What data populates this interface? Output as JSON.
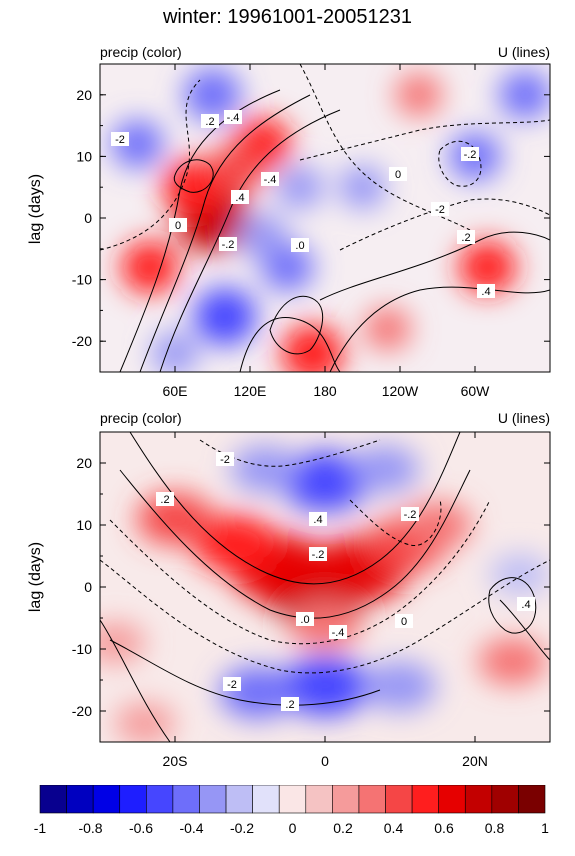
{
  "title": "winter: 19961001-20051231",
  "chart_data": [
    {
      "type": "heatmap",
      "left_label": "precip (color)",
      "right_label": "U (lines)",
      "ylabel": "lag (days)",
      "xlabel": "",
      "x_ticks": [
        "60E",
        "120E",
        "180",
        "120W",
        "60W"
      ],
      "x_tick_values": [
        60,
        120,
        180,
        240,
        300
      ],
      "xlim": [
        0,
        360
      ],
      "y_ticks": [
        "20",
        "10",
        "0",
        "-10",
        "-20"
      ],
      "y_tick_values": [
        20,
        10,
        0,
        -10,
        -20
      ],
      "ylim": [
        -25,
        25
      ],
      "contour_labels": [
        "-2",
        ".2",
        ".4",
        "0",
        "-.2",
        "-.4",
        ".0"
      ],
      "features": [
        {
          "x": 90,
          "y": 0,
          "value": 0.8
        },
        {
          "x": 75,
          "y": 5,
          "value": 0.6
        },
        {
          "x": 130,
          "y": 12,
          "value": 0.5
        },
        {
          "x": 110,
          "y": 8,
          "value": 0.45
        },
        {
          "x": 40,
          "y": -8,
          "value": 0.5
        },
        {
          "x": 170,
          "y": -22,
          "value": 0.6
        },
        {
          "x": 310,
          "y": -8,
          "value": 0.5
        },
        {
          "x": 230,
          "y": -18,
          "value": 0.3
        },
        {
          "x": 255,
          "y": 20,
          "value": 0.3
        },
        {
          "x": 90,
          "y": 20,
          "value": -0.5
        },
        {
          "x": 30,
          "y": 12,
          "value": -0.4
        },
        {
          "x": 100,
          "y": -16,
          "value": -0.6
        },
        {
          "x": 150,
          "y": -8,
          "value": -0.4
        },
        {
          "x": 130,
          "y": -3,
          "value": -0.35
        },
        {
          "x": 160,
          "y": 5,
          "value": -0.3
        },
        {
          "x": 300,
          "y": 10,
          "value": -0.4
        },
        {
          "x": 340,
          "y": 20,
          "value": -0.4
        },
        {
          "x": 210,
          "y": 5,
          "value": -0.3
        },
        {
          "x": 60,
          "y": -22,
          "value": -0.3
        }
      ]
    },
    {
      "type": "heatmap",
      "left_label": "precip (color)",
      "right_label": "U (lines)",
      "ylabel": "lag (days)",
      "xlabel": "",
      "x_ticks": [
        "20S",
        "0",
        "20N"
      ],
      "x_tick_values": [
        -20,
        0,
        20
      ],
      "xlim": [
        -30,
        30
      ],
      "y_ticks": [
        "20",
        "10",
        "0",
        "-10",
        "-20"
      ],
      "y_tick_values": [
        20,
        10,
        0,
        -10,
        -20
      ],
      "ylim": [
        -25,
        25
      ],
      "contour_labels": [
        "-2",
        ".2",
        ".4",
        "-.2",
        ".0",
        "-.4",
        "0"
      ],
      "features": [
        {
          "x": -1,
          "y": 0,
          "value": 0.85
        },
        {
          "x": -6,
          "y": 3,
          "value": 0.7
        },
        {
          "x": 5,
          "y": 3,
          "value": 0.65
        },
        {
          "x": -12,
          "y": 7,
          "value": 0.5
        },
        {
          "x": 11,
          "y": 7,
          "value": 0.45
        },
        {
          "x": -20,
          "y": 11,
          "value": 0.4
        },
        {
          "x": 15,
          "y": 10,
          "value": 0.3
        },
        {
          "x": 0,
          "y": -6,
          "value": 0.35
        },
        {
          "x": 25,
          "y": -12,
          "value": 0.3
        },
        {
          "x": -28,
          "y": -9,
          "value": 0.2
        },
        {
          "x": 0,
          "y": 17,
          "value": -0.55
        },
        {
          "x": -8,
          "y": 19,
          "value": -0.3
        },
        {
          "x": 8,
          "y": 19,
          "value": -0.3
        },
        {
          "x": 0,
          "y": -16,
          "value": -0.55
        },
        {
          "x": -9,
          "y": -17,
          "value": -0.4
        },
        {
          "x": 10,
          "y": -16,
          "value": -0.35
        },
        {
          "x": 26,
          "y": 2,
          "value": -0.2
        },
        {
          "x": -24,
          "y": -22,
          "value": 0.2
        }
      ]
    }
  ],
  "colorbar": {
    "ticks": [
      "-1",
      "-0.8",
      "-0.6",
      "-0.4",
      "-0.2",
      "0",
      "0.2",
      "0.4",
      "0.6",
      "0.8",
      "1"
    ],
    "colors": [
      "#08008f",
      "#0000c0",
      "#0000e6",
      "#1e1eff",
      "#4646ff",
      "#6e6efa",
      "#9696f5",
      "#bebef5",
      "#e1e1fa",
      "#fae6e6",
      "#f5c3c3",
      "#f59b9b",
      "#f57373",
      "#f54646",
      "#ff1e1e",
      "#e60000",
      "#c30000",
      "#a00000",
      "#7a0000"
    ]
  }
}
